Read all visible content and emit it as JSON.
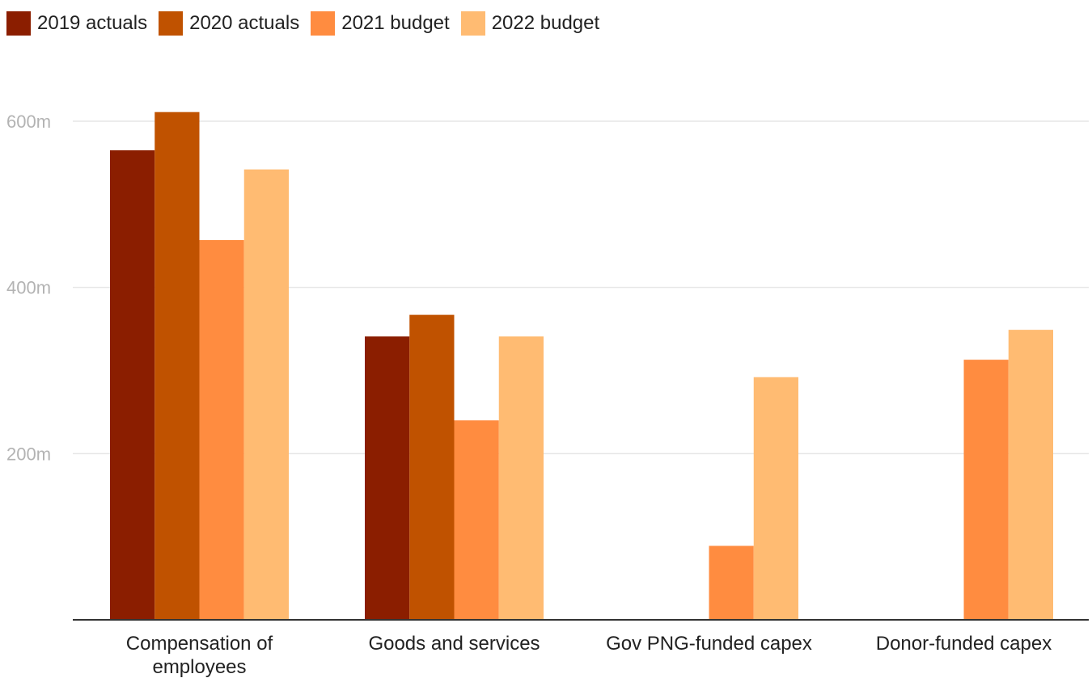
{
  "chart_data": {
    "type": "bar",
    "categories": [
      [
        "Compensation of",
        "employees"
      ],
      [
        "Goods and services"
      ],
      [
        "Gov PNG-funded capex"
      ],
      [
        "Donor-funded capex"
      ]
    ],
    "series": [
      {
        "name": "2019 actuals",
        "color": "#8b1e00",
        "values": [
          565,
          341,
          null,
          null
        ]
      },
      {
        "name": "2020 actuals",
        "color": "#c05200",
        "values": [
          611,
          367,
          null,
          null
        ]
      },
      {
        "name": "2021 budget",
        "color": "#ff8c40",
        "values": [
          457,
          240,
          89,
          313
        ]
      },
      {
        "name": "2022 budget",
        "color": "#ffbb72",
        "values": [
          542,
          341,
          292,
          349
        ]
      }
    ],
    "yticks": [
      {
        "value": 200,
        "label": "200m"
      },
      {
        "value": 400,
        "label": "400m"
      },
      {
        "value": 600,
        "label": "600m"
      }
    ],
    "ylim": [
      0,
      600
    ],
    "grid": true,
    "legend_position": "top-left",
    "title": "",
    "xlabel": "",
    "ylabel": ""
  }
}
